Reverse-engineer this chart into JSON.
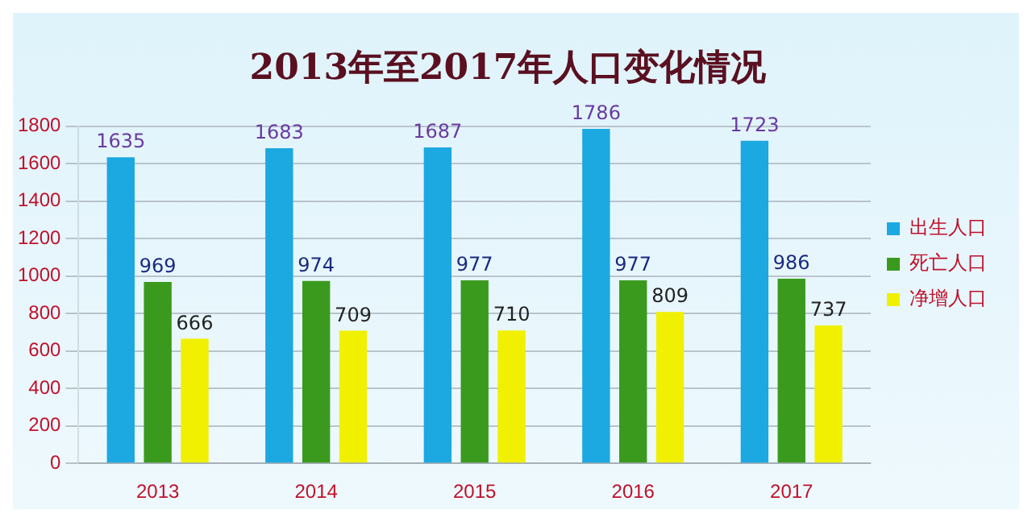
{
  "chart_data": {
    "type": "bar",
    "title": "2013年至2017年人口变化情况",
    "categories": [
      "2013",
      "2014",
      "2015",
      "2016",
      "2017"
    ],
    "series": [
      {
        "name": "出生人口",
        "color": "#1ca8e0",
        "values": [
          1635,
          1683,
          1687,
          1786,
          1723
        ]
      },
      {
        "name": "死亡人口",
        "color": "#3a9a1e",
        "values": [
          969,
          974,
          977,
          977,
          986
        ]
      },
      {
        "name": "净增人口",
        "color": "#f0f000",
        "values": [
          666,
          709,
          710,
          809,
          737
        ]
      }
    ],
    "ylim": [
      0,
      1800
    ],
    "yticks": [
      0,
      200,
      400,
      600,
      800,
      1000,
      1200,
      1400,
      1600,
      1800
    ],
    "grid": "y",
    "legend": "right",
    "data_labels": true
  }
}
